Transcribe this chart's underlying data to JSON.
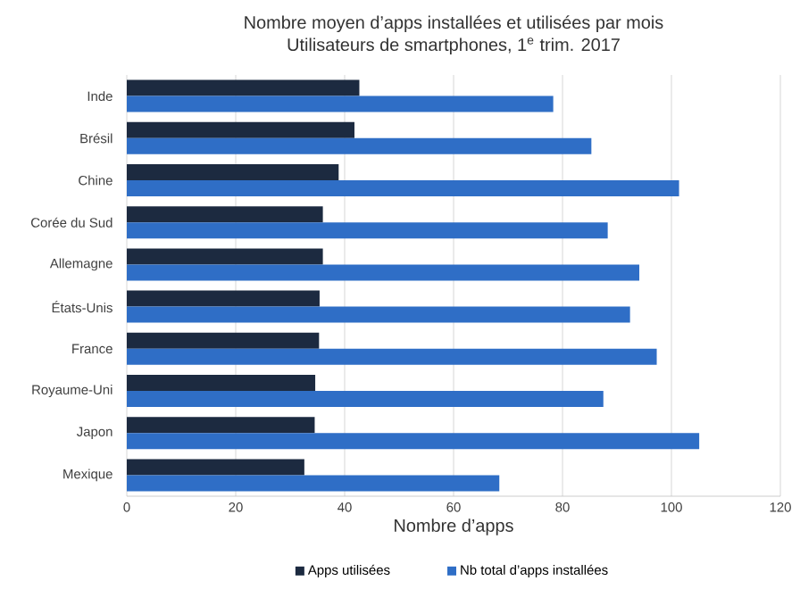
{
  "chart_data": {
    "type": "bar",
    "orientation": "horizontal",
    "title": "Nombre moyen d’apps installées et utilisées par mois",
    "subtitle": "Utilisateurs de smartphones, 1$^{e}$ trim. 2017",
    "xlabel": "Nombre d’apps",
    "categories": [
      "Inde",
      "Brésil",
      "Chine",
      "Corée du Sud",
      "Allemagne",
      "États-Unis",
      "France",
      "Royaume-Uni",
      "Japon",
      "Mexique"
    ],
    "series": [
      {
        "name": "Apps utilisées",
        "color": "#1c2a40",
        "values": [
          42.7,
          41.8,
          38.9,
          36,
          36,
          35.4,
          35.3,
          34.6,
          34.5,
          32.6
        ]
      },
      {
        "name": "Nb total d’apps installées",
        "color": "#2f6ec6",
        "values": [
          78.3,
          85.3,
          101.4,
          88.3,
          94.1,
          92.4,
          97.3,
          87.5,
          105.1,
          68.4
        ]
      }
    ],
    "xlim": [
      0,
      120
    ],
    "xticks": [
      0,
      20,
      40,
      60,
      80,
      100,
      120
    ],
    "grid": "x",
    "legend": "bottom"
  }
}
